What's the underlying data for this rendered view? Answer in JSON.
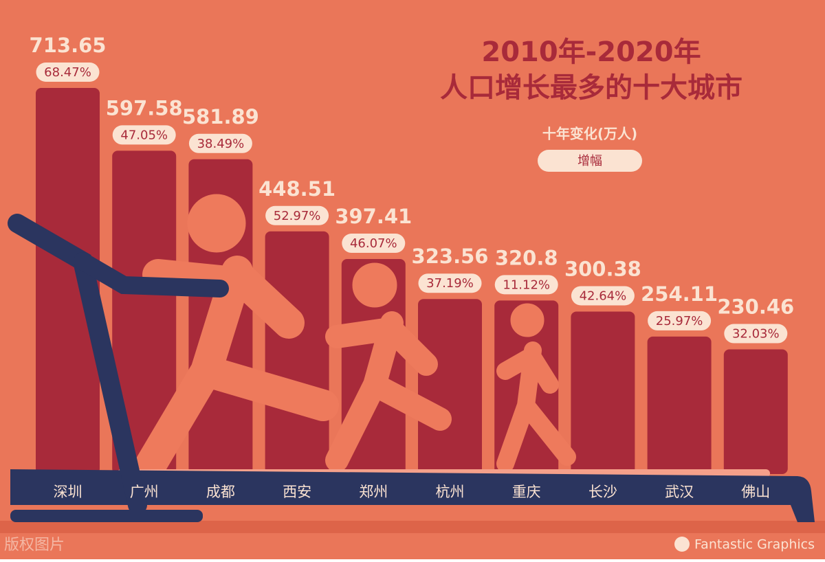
{
  "chart_data": {
    "type": "bar",
    "title": [
      "2010年-2020年",
      "人口增长最多的十大城市"
    ],
    "categories": [
      "深圳",
      "广州",
      "成都",
      "西安",
      "郑州",
      "杭州",
      "重庆",
      "长沙",
      "武汉",
      "佛山"
    ],
    "series": [
      {
        "name": "十年变化(万人)",
        "color": "#a82a3a",
        "values": [
          713.65,
          597.58,
          581.89,
          448.51,
          397.41,
          323.56,
          320.8,
          300.38,
          254.11,
          230.46
        ]
      },
      {
        "name": "增幅",
        "color": "#fbe3d2",
        "values": [
          68.47,
          47.05,
          38.49,
          52.97,
          46.07,
          37.19,
          11.12,
          42.64,
          25.97,
          32.03
        ],
        "value_labels": [
          "68.47%",
          "47.05%",
          "38.49%",
          "52.97%",
          "46.07%",
          "37.19%",
          "11.12%",
          "42.64%",
          "25.97%",
          "32.03%"
        ]
      }
    ],
    "watermark": "版权图片",
    "credit": "Fantastic Graphics"
  }
}
